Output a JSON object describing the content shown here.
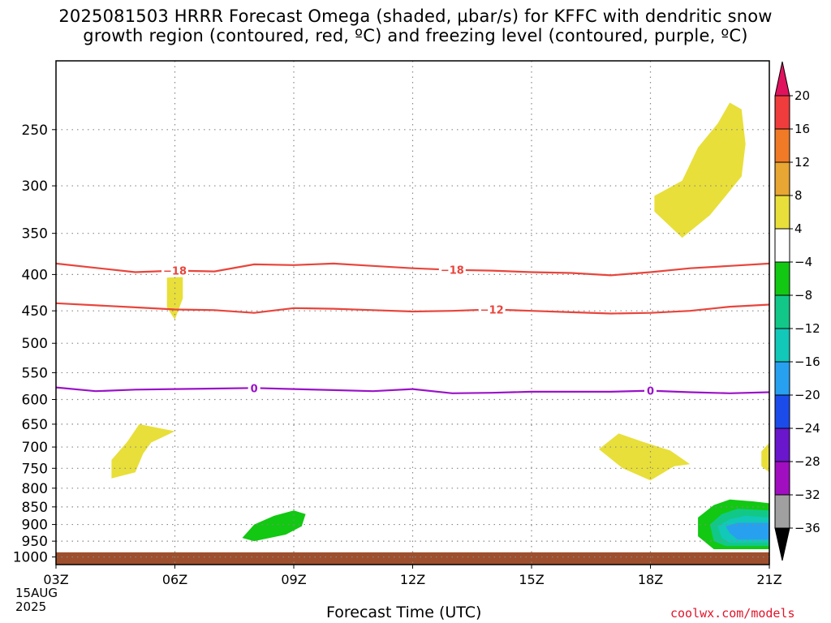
{
  "title": {
    "line1": "2025081503 HRRR Forecast Omega (shaded, µbar/s) for KFFC with dendritic snow",
    "line2": "growth region (contoured, red, ºC) and freezing level (contoured, purple, ºC)"
  },
  "credit": "coolwx.com/models",
  "colors": {
    "dendritic_contour": "#e8453c",
    "freezing_contour": "#9a12c8",
    "ground": "#9e4f2d",
    "grid": "#888888"
  },
  "chart_data": {
    "type": "heatmap",
    "xlabel": "Forecast Time (UTC)",
    "x_start_date": [
      "15AUG",
      "2025"
    ],
    "x_ticks": [
      {
        "hour": 0,
        "label": "03Z"
      },
      {
        "hour": 3,
        "label": "06Z"
      },
      {
        "hour": 6,
        "label": "09Z"
      },
      {
        "hour": 9,
        "label": "12Z"
      },
      {
        "hour": 12,
        "label": "15Z"
      },
      {
        "hour": 15,
        "label": "18Z"
      },
      {
        "hour": 18,
        "label": "21Z"
      }
    ],
    "xlim": [
      0,
      18
    ],
    "ylabel": "",
    "y_axis_scale": "log-pressure, inverted",
    "ylim": [
      1025,
      200
    ],
    "y_ticks": [
      250,
      300,
      350,
      400,
      450,
      500,
      550,
      600,
      650,
      700,
      750,
      800,
      850,
      900,
      950,
      1000
    ],
    "grid": true,
    "colorbar": {
      "placement": "right",
      "labels": [
        "20",
        "16",
        "12",
        "8",
        "4",
        "−4",
        "−8",
        "−12",
        "−16",
        "−20",
        "−24",
        "−28",
        "−32",
        "−36"
      ],
      "colors": [
        "#e0125e",
        "#f03c3c",
        "#f07a26",
        "#e8a632",
        "#e8df3a",
        "#ffffff",
        "#12c812",
        "#12c888",
        "#12c8b8",
        "#28a0f0",
        "#1b4cea",
        "#6a16cc",
        "#a00ec0",
        "#a0a0a0",
        "#000000"
      ]
    },
    "contours": [
      {
        "name": "dendritic_top",
        "level_label": "−18",
        "color": "red",
        "points": [
          [
            0,
            386
          ],
          [
            2,
            397
          ],
          [
            3,
            395
          ],
          [
            4,
            396
          ],
          [
            5,
            387
          ],
          [
            6,
            388
          ],
          [
            7,
            386
          ],
          [
            8,
            389
          ],
          [
            9,
            392
          ],
          [
            10,
            394
          ],
          [
            11,
            395
          ],
          [
            12,
            397
          ],
          [
            13,
            398
          ],
          [
            14,
            401
          ],
          [
            15,
            397
          ],
          [
            16,
            392
          ],
          [
            17,
            389
          ],
          [
            18,
            386
          ]
        ],
        "label_at_hours": [
          3,
          10
        ]
      },
      {
        "name": "dendritic_bottom",
        "level_label": "−12",
        "color": "red",
        "points": [
          [
            0,
            439
          ],
          [
            2,
            445
          ],
          [
            3,
            448
          ],
          [
            4,
            449
          ],
          [
            5,
            453
          ],
          [
            6,
            446
          ],
          [
            7,
            447
          ],
          [
            8,
            449
          ],
          [
            9,
            451
          ],
          [
            10,
            450
          ],
          [
            11,
            448
          ],
          [
            12,
            450
          ],
          [
            13,
            452
          ],
          [
            14,
            454
          ],
          [
            15,
            453
          ],
          [
            16,
            450
          ],
          [
            17,
            444
          ],
          [
            18,
            441
          ]
        ],
        "label_at_hours": [
          11
        ]
      },
      {
        "name": "freezing_level",
        "level_label": "0",
        "color": "purple",
        "points": [
          [
            0,
            577
          ],
          [
            1,
            584
          ],
          [
            2,
            581
          ],
          [
            3,
            580
          ],
          [
            4,
            579
          ],
          [
            5,
            578
          ],
          [
            6,
            580
          ],
          [
            7,
            582
          ],
          [
            8,
            584
          ],
          [
            9,
            580
          ],
          [
            10,
            588
          ],
          [
            11,
            587
          ],
          [
            12,
            585
          ],
          [
            13,
            585
          ],
          [
            14,
            585
          ],
          [
            15,
            583
          ],
          [
            16,
            586
          ],
          [
            17,
            588
          ],
          [
            18,
            586
          ]
        ],
        "label_at_hours": [
          5,
          15
        ]
      }
    ],
    "regions": [
      {
        "omega": "4 to 8",
        "color": "#e8df3a",
        "points": [
          [
            15.8,
            355
          ],
          [
            15.1,
            326
          ],
          [
            15.1,
            310
          ],
          [
            15.8,
            295
          ],
          [
            16.2,
            265
          ],
          [
            16.7,
            245
          ],
          [
            17.0,
            229
          ],
          [
            17.3,
            234
          ],
          [
            17.4,
            262
          ],
          [
            17.3,
            291
          ],
          [
            16.9,
            310
          ],
          [
            16.5,
            330
          ]
        ]
      },
      {
        "omega": "4 to 8",
        "color": "#e8df3a",
        "points": [
          [
            2.8,
            404
          ],
          [
            3.2,
            403
          ],
          [
            3.2,
            432
          ],
          [
            3.0,
            463
          ],
          [
            2.8,
            445
          ]
        ]
      },
      {
        "omega": "4 to 8",
        "color": "#e8df3a",
        "points": [
          [
            1.4,
            775
          ],
          [
            1.4,
            730
          ],
          [
            1.8,
            688
          ],
          [
            2.1,
            650
          ],
          [
            3.0,
            665
          ],
          [
            2.4,
            690
          ],
          [
            2.2,
            715
          ],
          [
            2.0,
            760
          ]
        ]
      },
      {
        "omega": "4 to 8",
        "color": "#e8df3a",
        "points": [
          [
            13.7,
            705
          ],
          [
            14.2,
            670
          ],
          [
            14.8,
            688
          ],
          [
            15.5,
            708
          ],
          [
            16.0,
            740
          ],
          [
            15.6,
            745
          ],
          [
            15.0,
            780
          ],
          [
            14.3,
            750
          ]
        ]
      },
      {
        "omega": "4 to 8",
        "color": "#e8df3a",
        "points": [
          [
            18,
            690
          ],
          [
            17.8,
            710
          ],
          [
            17.8,
            745
          ],
          [
            18,
            760
          ]
        ]
      },
      {
        "omega": "-4 to -8",
        "color": "#12c812",
        "points": [
          [
            4.7,
            940
          ],
          [
            5.0,
            900
          ],
          [
            5.5,
            875
          ],
          [
            6.0,
            860
          ],
          [
            6.3,
            870
          ],
          [
            6.2,
            905
          ],
          [
            5.8,
            930
          ],
          [
            5.0,
            950
          ]
        ]
      },
      {
        "omega": "-4 to -8",
        "color": "#12c812",
        "points": [
          [
            16.2,
            935
          ],
          [
            16.2,
            880
          ],
          [
            16.6,
            845
          ],
          [
            17.0,
            830
          ],
          [
            17.6,
            835
          ],
          [
            18,
            840
          ],
          [
            18,
            975
          ],
          [
            16.6,
            975
          ]
        ]
      },
      {
        "omega": "-8 to -12",
        "color": "#12c888",
        "points": [
          [
            16.6,
            950
          ],
          [
            16.5,
            900
          ],
          [
            16.8,
            870
          ],
          [
            17.2,
            855
          ],
          [
            18,
            860
          ],
          [
            18,
            965
          ],
          [
            16.9,
            965
          ]
        ]
      },
      {
        "omega": "-12 to -16",
        "color": "#12c8b8",
        "points": [
          [
            16.8,
            940
          ],
          [
            16.7,
            905
          ],
          [
            17.0,
            885
          ],
          [
            17.4,
            875
          ],
          [
            18,
            880
          ],
          [
            18,
            955
          ],
          [
            17.0,
            955
          ]
        ]
      },
      {
        "omega": "-16 to -20",
        "color": "#28a0f0",
        "points": [
          [
            17.0,
            925
          ],
          [
            16.9,
            905
          ],
          [
            17.2,
            895
          ],
          [
            18,
            895
          ],
          [
            18,
            945
          ],
          [
            17.2,
            945
          ]
        ]
      }
    ],
    "ground_level_hpa": 985
  }
}
